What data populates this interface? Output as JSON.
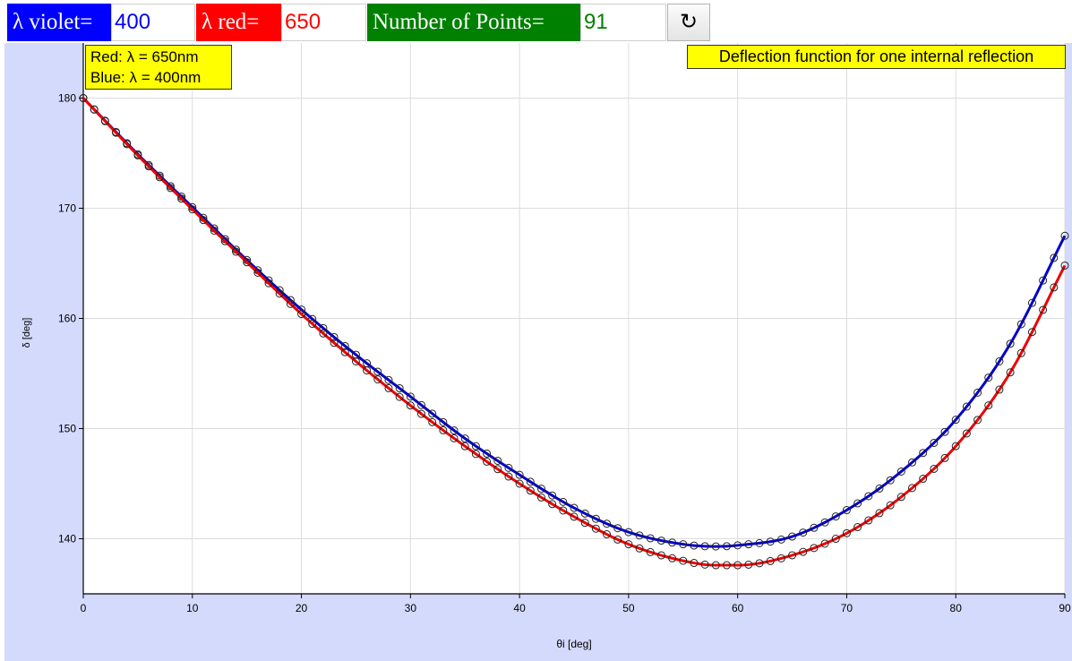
{
  "toolbar": {
    "violet_label": "λ violet=",
    "violet_value": "400",
    "red_label": "λ red=",
    "red_value": "650",
    "points_label": "Number of Points=",
    "points_value": "91",
    "refresh_glyph": "↻",
    "colors": {
      "violet": "#0000ff",
      "red": "#ff0000",
      "points": "#008000"
    }
  },
  "legend": {
    "red_text": "Red: λ = 650nm",
    "blue_text": "Blue: λ = 400nm"
  },
  "chart_data": {
    "type": "line",
    "title": "Deflection function for one internal reflection",
    "xlabel": "θi [deg]",
    "ylabel": "δ [deg]",
    "xlim": [
      0,
      90
    ],
    "ylim": [
      135,
      185
    ],
    "xticks": [
      "0",
      "10",
      "20",
      "30",
      "40",
      "50",
      "60",
      "70",
      "80",
      "90"
    ],
    "yticks": [
      "140",
      "150",
      "160",
      "170",
      "180"
    ],
    "grid": true,
    "markers": "open circles",
    "series": [
      {
        "name": "Blue: λ = 400nm",
        "color": "#0000cc",
        "x": [
          0,
          5,
          10,
          15,
          20,
          25,
          30,
          35,
          40,
          45,
          50,
          55,
          58,
          60,
          65,
          70,
          75,
          80,
          85,
          90
        ],
        "y": [
          180,
          174.9,
          170.1,
          165.3,
          160.8,
          156.7,
          152.9,
          149.1,
          145.8,
          142.8,
          140.6,
          139.5,
          139.3,
          139.4,
          140.2,
          142.6,
          146.1,
          150.8,
          157.7,
          167.5
        ]
      },
      {
        "name": "Red: λ = 650nm",
        "color": "#ee0000",
        "x": [
          0,
          5,
          10,
          15,
          20,
          25,
          30,
          35,
          40,
          45,
          50,
          55,
          58,
          60,
          65,
          70,
          75,
          80,
          85,
          90
        ],
        "y": [
          180,
          174.8,
          169.9,
          165.1,
          160.4,
          156.1,
          152.1,
          148.4,
          145,
          142,
          139.5,
          138.0,
          137.6,
          137.6,
          138.5,
          140.5,
          143.8,
          148.4,
          155.1,
          164.8
        ]
      }
    ]
  }
}
